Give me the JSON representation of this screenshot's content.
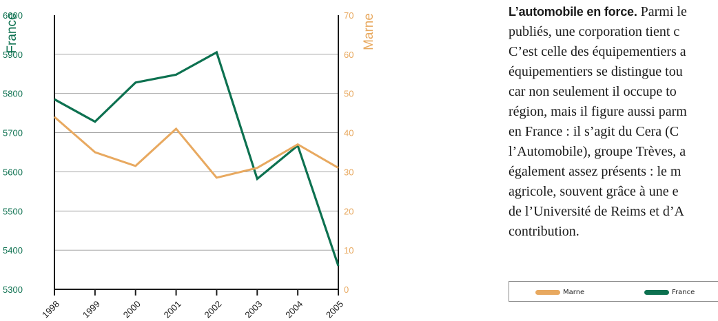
{
  "chart_data": {
    "type": "line",
    "x": [
      "1998",
      "1999",
      "2000",
      "2001",
      "2002",
      "2003",
      "2004",
      "2005"
    ],
    "series": [
      {
        "name": "France",
        "axis": "left",
        "color": "#0d7150",
        "values": [
          5785,
          5728,
          5828,
          5848,
          5905,
          5582,
          5667,
          5360
        ]
      },
      {
        "name": "Marne",
        "axis": "right",
        "color": "#e8a960",
        "values": [
          44,
          35,
          31.5,
          41,
          28.5,
          31,
          37,
          31
        ]
      }
    ],
    "left_axis": {
      "label": "France",
      "range": [
        5300,
        6000
      ],
      "ticks": [
        "6000",
        "5900",
        "5800",
        "5700",
        "5600",
        "5500",
        "5400",
        "5300"
      ],
      "color": "#0d7150"
    },
    "right_axis": {
      "label": "Marne",
      "range": [
        0,
        70
      ],
      "ticks": [
        "70",
        "60",
        "50",
        "40",
        "30",
        "20",
        "10",
        "0"
      ],
      "color": "#e8a960"
    },
    "grid": true,
    "legend": {
      "placement": "bottom-right",
      "entries": [
        "Marne",
        "France"
      ]
    }
  },
  "article": {
    "headline": "L’automobile en force.",
    "lines": [
      " Parmi le",
      "publiés, une corporation tient c",
      "C’est celle des équipementiers a",
      "équipementiers se distingue tou",
      "car non seulement il occupe to",
      "région, mais il figure aussi parm",
      "en France : il s’agit du Cera (C",
      "l’Automobile), groupe Trèves, a",
      "également assez présents : le m",
      "agricole, souvent grâce à une e",
      "de l’Université de Reims et d’A",
      "contribution."
    ]
  }
}
